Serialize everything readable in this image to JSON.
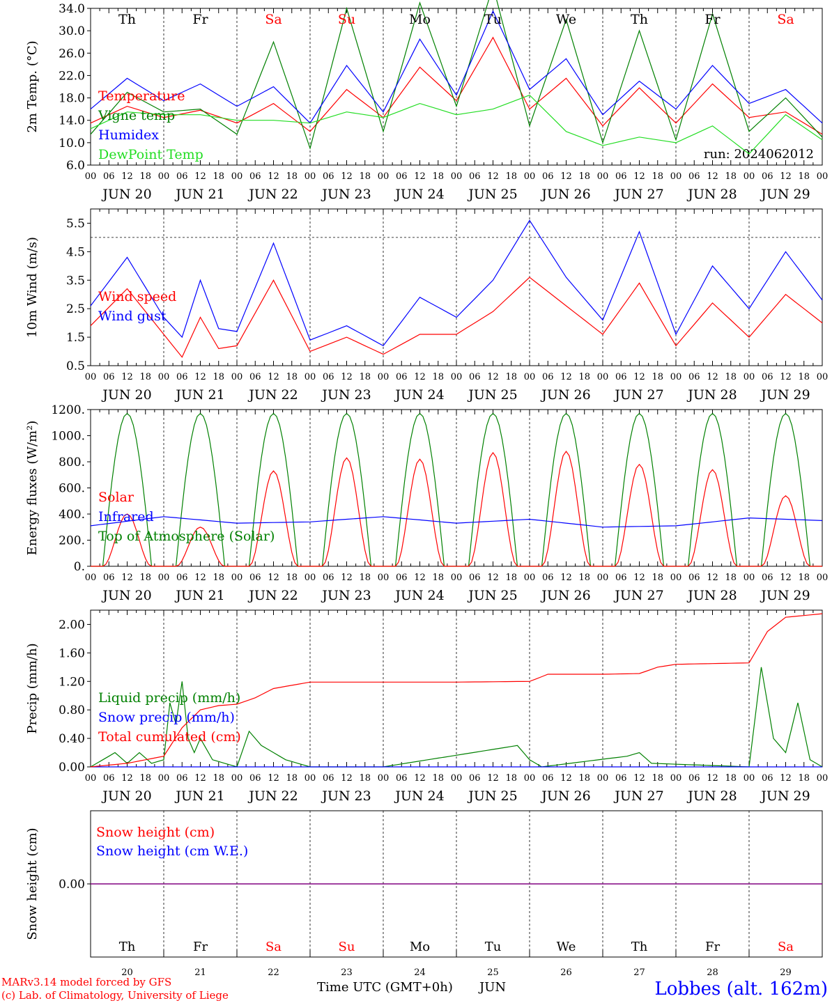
{
  "run_label": "run: 2024062012",
  "footer": {
    "credit_line1": "MARv3.14 model forced by GFS",
    "credit_line2": "(c) Lab. of Climatology, University of Liege",
    "time_label": "Time UTC (GMT+0h)",
    "month": "JUN",
    "station": "Lobbes (alt. 162m)"
  },
  "colors": {
    "red": "#ff0000",
    "dark_green": "#008000",
    "blue": "#0000ff",
    "light_green": "#22dd22",
    "purple": "#800080"
  },
  "days": [
    "20",
    "21",
    "22",
    "23",
    "24",
    "25",
    "26",
    "27",
    "28",
    "29"
  ],
  "day_labels": [
    "JUN 20",
    "JUN 21",
    "JUN 22",
    "JUN 23",
    "JUN 24",
    "JUN 25",
    "JUN 26",
    "JUN 27",
    "JUN 28",
    "JUN 29"
  ],
  "weekdays": [
    {
      "name": "Th",
      "weekend": false
    },
    {
      "name": "Fr",
      "weekend": false
    },
    {
      "name": "Sa",
      "weekend": true
    },
    {
      "name": "Su",
      "weekend": true
    },
    {
      "name": "Mo",
      "weekend": false
    },
    {
      "name": "Tu",
      "weekend": false
    },
    {
      "name": "We",
      "weekend": false
    },
    {
      "name": "Th",
      "weekend": false
    },
    {
      "name": "Fr",
      "weekend": false
    },
    {
      "name": "Sa",
      "weekend": true
    }
  ],
  "hour_ticks": [
    "00",
    "06",
    "12",
    "18"
  ],
  "chart_data": [
    {
      "type": "line",
      "ylabel": "2m Temp. (°C)",
      "ylim": [
        6.0,
        34.0
      ],
      "yticks": [
        "6.0",
        "10.0",
        "14.0",
        "18.0",
        "22.0",
        "26.0",
        "30.0",
        "34.0"
      ],
      "x_unit": "hours since JUN 20 00 UTC",
      "legend": [
        "Temperature",
        "Vigne temp",
        "Humidex",
        "DewPoint Temp"
      ],
      "series": [
        {
          "name": "Temperature",
          "color": "#ff0000",
          "x": [
            0,
            12,
            24,
            36,
            48,
            60,
            72,
            84,
            96,
            108,
            120,
            132,
            144,
            156,
            168,
            180,
            192,
            204,
            216,
            228,
            240
          ],
          "values": [
            13.5,
            16.5,
            14.5,
            15.8,
            13.5,
            17.0,
            12.0,
            19.5,
            14.5,
            23.5,
            17.5,
            28.8,
            16.0,
            21.5,
            13.0,
            19.8,
            13.5,
            20.5,
            14.5,
            15.5,
            11.5
          ]
        },
        {
          "name": "Vigne temp",
          "color": "#008000",
          "x": [
            0,
            12,
            24,
            36,
            48,
            60,
            72,
            84,
            96,
            108,
            120,
            132,
            144,
            156,
            168,
            180,
            192,
            204,
            216,
            228,
            240
          ],
          "values": [
            11.5,
            19.0,
            15.5,
            16.0,
            11.5,
            28.0,
            9.0,
            34.0,
            12.0,
            35.0,
            16.5,
            38.0,
            13.0,
            32.0,
            10.0,
            30.0,
            10.5,
            33.0,
            12.0,
            18.0,
            11.0
          ]
        },
        {
          "name": "Humidex",
          "color": "#0000ff",
          "x": [
            0,
            12,
            24,
            36,
            48,
            60,
            72,
            84,
            96,
            108,
            120,
            132,
            144,
            156,
            168,
            180,
            192,
            204,
            216,
            228,
            240
          ],
          "values": [
            16.0,
            21.5,
            17.5,
            20.5,
            16.5,
            20.0,
            13.5,
            23.8,
            15.5,
            28.5,
            18.5,
            33.5,
            19.5,
            25.0,
            15.0,
            21.0,
            16.0,
            23.8,
            17.0,
            19.5,
            13.5
          ]
        },
        {
          "name": "DewPoint Temp",
          "color": "#22dd22",
          "x": [
            0,
            12,
            24,
            36,
            48,
            60,
            72,
            84,
            96,
            108,
            120,
            132,
            144,
            156,
            168,
            180,
            192,
            204,
            216,
            228,
            240
          ],
          "values": [
            12.5,
            15.5,
            15.0,
            15.0,
            14.0,
            14.0,
            13.5,
            15.5,
            14.5,
            17.0,
            15.0,
            16.0,
            18.5,
            12.0,
            9.5,
            11.0,
            10.0,
            13.0,
            8.0,
            15.0,
            10.5
          ]
        }
      ]
    },
    {
      "type": "line",
      "ylabel": "10m Wind (m/s)",
      "ylim": [
        0.5,
        6.0
      ],
      "yticks": [
        "0.5",
        "1.5",
        "2.5",
        "3.5",
        "4.5",
        "5.5"
      ],
      "reference_line": 5.0,
      "legend": [
        "Wind speed",
        "Wind gust"
      ],
      "series": [
        {
          "name": "Wind speed",
          "color": "#ff0000",
          "x": [
            0,
            12,
            24,
            30,
            36,
            42,
            48,
            60,
            72,
            84,
            96,
            108,
            120,
            132,
            144,
            156,
            168,
            180,
            192,
            204,
            216,
            228,
            240
          ],
          "values": [
            1.9,
            3.2,
            1.6,
            0.8,
            2.2,
            1.1,
            1.2,
            3.5,
            1.0,
            1.5,
            0.9,
            1.6,
            1.6,
            2.4,
            3.6,
            2.6,
            1.6,
            3.4,
            1.2,
            2.7,
            1.5,
            3.0,
            2.0
          ]
        },
        {
          "name": "Wind gust",
          "color": "#0000ff",
          "x": [
            0,
            12,
            24,
            30,
            36,
            42,
            48,
            60,
            72,
            84,
            96,
            108,
            120,
            132,
            144,
            156,
            168,
            180,
            192,
            204,
            216,
            228,
            240
          ],
          "values": [
            2.6,
            4.3,
            2.2,
            1.5,
            3.5,
            1.8,
            1.7,
            4.8,
            1.4,
            1.9,
            1.2,
            2.9,
            2.2,
            3.5,
            5.6,
            3.6,
            2.1,
            5.2,
            1.6,
            4.0,
            2.5,
            4.5,
            2.8
          ]
        }
      ]
    },
    {
      "type": "line",
      "ylabel": "Energy fluxes (W/m²)",
      "ylim": [
        0,
        1200
      ],
      "yticks": [
        "0.",
        "200.",
        "400.",
        "600.",
        "800.",
        "1000.",
        "1200."
      ],
      "legend": [
        "Solar",
        "Infrared",
        "Top of Atmosphere (Solar)"
      ],
      "toa_peak": 1170,
      "solar_peak_per_day": [
        400,
        300,
        730,
        830,
        820,
        870,
        880,
        780,
        740,
        540
      ],
      "infrared": {
        "name": "Infrared",
        "color": "#0000ff",
        "x": [
          0,
          24,
          48,
          72,
          96,
          120,
          144,
          168,
          192,
          216,
          240
        ],
        "values": [
          310,
          380,
          330,
          340,
          380,
          330,
          360,
          300,
          310,
          370,
          350
        ]
      }
    },
    {
      "type": "line",
      "ylabel": "Precip (mm/h)",
      "ylim": [
        0.0,
        2.2
      ],
      "yticks": [
        "0.00",
        "0.40",
        "0.80",
        "1.20",
        "1.60",
        "2.00"
      ],
      "legend": [
        "Liquid precip (mm/h)",
        "Snow precip (mm/h)",
        "Total cumulated (cm)"
      ],
      "series": [
        {
          "name": "Total cumulated (cm)",
          "color": "#ff0000",
          "x": [
            0,
            12,
            24,
            30,
            36,
            42,
            48,
            54,
            60,
            72,
            96,
            120,
            144,
            150,
            168,
            180,
            186,
            192,
            216,
            222,
            228,
            240
          ],
          "values": [
            0.0,
            0.05,
            0.15,
            0.55,
            0.8,
            0.86,
            0.88,
            0.97,
            1.1,
            1.19,
            1.19,
            1.19,
            1.2,
            1.3,
            1.3,
            1.31,
            1.4,
            1.44,
            1.46,
            1.9,
            2.1,
            2.15
          ]
        },
        {
          "name": "Liquid precip (mm/h)",
          "color": "#008000",
          "x": [
            0,
            8,
            12,
            16,
            20,
            24,
            26,
            28,
            30,
            32,
            34,
            36,
            40,
            44,
            48,
            52,
            56,
            60,
            64,
            68,
            72,
            96,
            140,
            144,
            148,
            176,
            180,
            184,
            216,
            220,
            224,
            228,
            232,
            236,
            240
          ],
          "values": [
            0,
            0.2,
            0.05,
            0.2,
            0.05,
            0.1,
            0.9,
            0.6,
            1.2,
            0.4,
            0.2,
            0.4,
            0.1,
            0.05,
            0,
            0.5,
            0.3,
            0.2,
            0.1,
            0.05,
            0,
            0,
            0.3,
            0.1,
            0,
            0.15,
            0.2,
            0.05,
            0,
            1.4,
            0.4,
            0.2,
            0.9,
            0.1,
            0
          ]
        },
        {
          "name": "Snow precip (mm/h)",
          "color": "#0000ff",
          "x": [
            0,
            240
          ],
          "values": [
            0,
            0
          ]
        }
      ]
    },
    {
      "type": "line",
      "ylabel": "Snow height (cm)",
      "yticks": [
        "0.00"
      ],
      "legend": [
        "Snow height (cm)",
        "Snow height (cm W.E.)"
      ],
      "series": [
        {
          "name": "Snow height (cm)",
          "color": "#ff0000",
          "x": [
            0,
            240
          ],
          "values": [
            0,
            0
          ]
        },
        {
          "name": "Snow height (cm W.E.)",
          "color": "#0000ff",
          "x": [
            0,
            240
          ],
          "values": [
            0,
            0
          ]
        }
      ]
    }
  ]
}
